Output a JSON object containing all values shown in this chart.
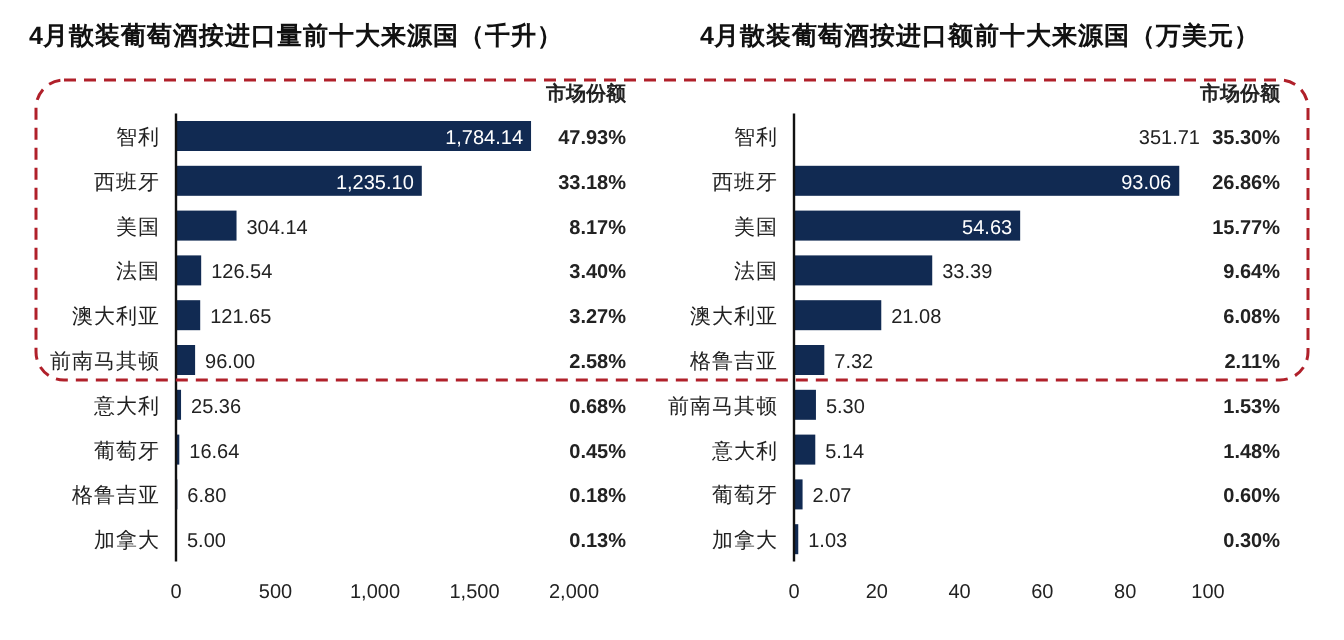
{
  "chart_data": [
    {
      "type": "bar",
      "orientation": "horizontal",
      "title": "4月散装葡萄酒按进口量前十大来源国（千升）",
      "categories": [
        "智利",
        "西班牙",
        "美国",
        "法国",
        "澳大利亚",
        "前南马其顿",
        "意大利",
        "葡萄牙",
        "格鲁吉亚",
        "加拿大"
      ],
      "values": [
        1784.14,
        1235.1,
        304.14,
        126.54,
        121.65,
        96.0,
        25.36,
        16.64,
        6.8,
        5.0
      ],
      "value_labels": [
        "1,784.14",
        "1,235.10",
        "304.14",
        "126.54",
        "121.65",
        "96.00",
        "25.36",
        "16.64",
        "6.80",
        "5.00"
      ],
      "color": "#112a52",
      "xlim": [
        0,
        2000
      ],
      "xticks": [
        0,
        500,
        {
          "value": 1000,
          "label": "1,000"
        },
        {
          "value": 1500,
          "label": "1,500"
        },
        {
          "value": 2000,
          "label": "2,000"
        }
      ],
      "annotations": [
        "市场份额",
        "47.93%",
        "33.18%",
        "8.17%",
        "3.40%",
        "3.27%",
        "2.58%",
        "0.68%",
        "0.45%",
        "0.18%",
        "0.13%"
      ]
    },
    {
      "type": "bar",
      "orientation": "horizontal",
      "title": "4月散装葡萄酒按进口额前十大来源国（万美元）",
      "categories": [
        "智利",
        "西班牙",
        "美国",
        "法国",
        "澳大利亚",
        "格鲁吉亚",
        "前南马其顿",
        "意大利",
        "葡萄牙",
        "加拿大"
      ],
      "values": [
        null,
        93.06,
        54.63,
        33.39,
        21.08,
        7.32,
        5.3,
        5.14,
        2.07,
        1.03
      ],
      "value_labels": [
        "351.71",
        "93.06",
        "54.63",
        "33.39",
        "21.08",
        "7.32",
        "5.30",
        "5.14",
        "2.07",
        "1.03"
      ],
      "color": "#112a52",
      "xlim": [
        0,
        100
      ],
      "xticks": [
        0,
        20,
        40,
        60,
        80,
        100
      ],
      "annotations": [
        "市场份额",
        "35.30%",
        "26.86%",
        "15.77%",
        "9.64%",
        "6.08%",
        "2.11%",
        "1.53%",
        "1.48%",
        "0.60%",
        "0.30%"
      ]
    }
  ]
}
